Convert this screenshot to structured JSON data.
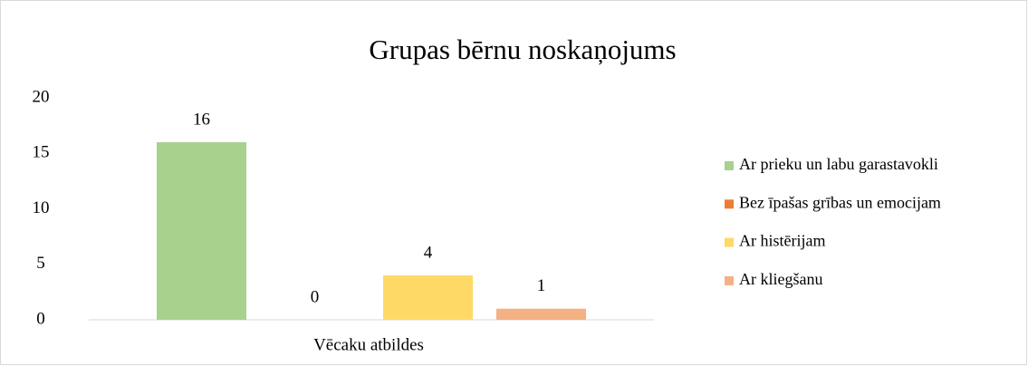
{
  "chart_data": {
    "type": "bar",
    "title": "Grupas bērnu noskaņojums",
    "categories": [
      "Vēcaku atbildes"
    ],
    "series": [
      {
        "name": "Ar prieku un labu garastavokli",
        "color": "#a9d18e",
        "values": [
          16
        ]
      },
      {
        "name": "Bez īpašas grības un emocijam",
        "color": "#ed7d31",
        "values": [
          0
        ]
      },
      {
        "name": "Ar histērijam",
        "color": "#ffd966",
        "values": [
          4
        ]
      },
      {
        "name": "Ar kliegšanu",
        "color": "#f4b183",
        "values": [
          1
        ]
      }
    ],
    "ylim": [
      0,
      20
    ],
    "yticks": [
      0,
      5,
      10,
      15,
      20
    ],
    "grid": false,
    "legend": "right",
    "data_labels": true
  }
}
